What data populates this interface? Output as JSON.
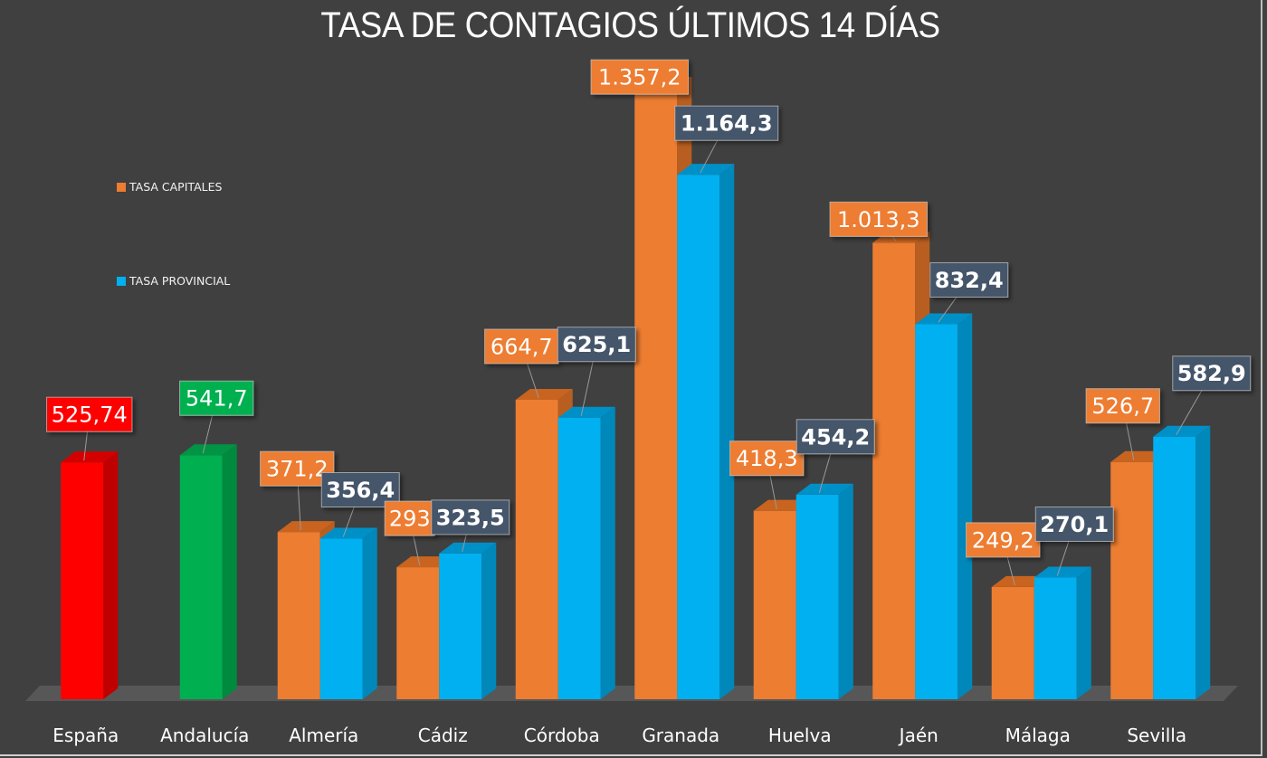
{
  "chart_data": {
    "type": "bar",
    "subtype": "3d-clustered-column",
    "title": "TASA DE CONTAGIOS ÚLTIMOS 14 DÍAS",
    "xlabel": "",
    "ylabel": "",
    "ylim": [
      0,
      1400
    ],
    "grid": false,
    "legend_position": "left",
    "categories": [
      "España",
      "Andalucía",
      "Almería",
      "Cádiz",
      "Córdoba",
      "Granada",
      "Huelva",
      "Jaén",
      "Málaga",
      "Sevilla"
    ],
    "single_values": [
      {
        "category": "España",
        "value": 525.74,
        "label": "525,74",
        "color": "#ff0000",
        "side_color": "#c00000",
        "top_color": "#d40000"
      },
      {
        "category": "Andalucía",
        "value": 541.7,
        "label": "541,7",
        "color": "#00b050",
        "side_color": "#008a3e",
        "top_color": "#009444"
      }
    ],
    "series": [
      {
        "name": "TASA CAPITALES",
        "color": "#ed7d31",
        "side_color": "#b85e20",
        "top_color": "#c8641f",
        "label_bg": "#ed7d31",
        "label_bold": false,
        "values": [
          null,
          null,
          371.2,
          293,
          664.7,
          1357.2,
          418.3,
          1013.3,
          249.2,
          526.7
        ],
        "labels": [
          null,
          null,
          "371,2",
          "293",
          "664,7",
          "1.357,2",
          "418,3",
          "1.013,3",
          "249,2",
          "526,7"
        ]
      },
      {
        "name": "TASA PROVINCIAL",
        "color": "#00b0f0",
        "side_color": "#0088bb",
        "top_color": "#0090c8",
        "label_bg": "#44546a",
        "label_bold": true,
        "values": [
          null,
          null,
          356.4,
          323.5,
          625.1,
          1164.3,
          454.2,
          832.4,
          270.1,
          582.9
        ],
        "labels": [
          null,
          null,
          "356,4",
          "323,5",
          "625,1",
          "1.164,3",
          "454,2",
          "832,4",
          "270,1",
          "582,9"
        ]
      }
    ]
  },
  "legend": {
    "items": [
      {
        "label": "TASA CAPITALES",
        "color": "#ed7d31"
      },
      {
        "label": "TASA PROVINCIAL",
        "color": "#00b0f0"
      }
    ]
  },
  "colors": {
    "background": "#404040",
    "floor": "#575757",
    "text": "#ffffff"
  }
}
